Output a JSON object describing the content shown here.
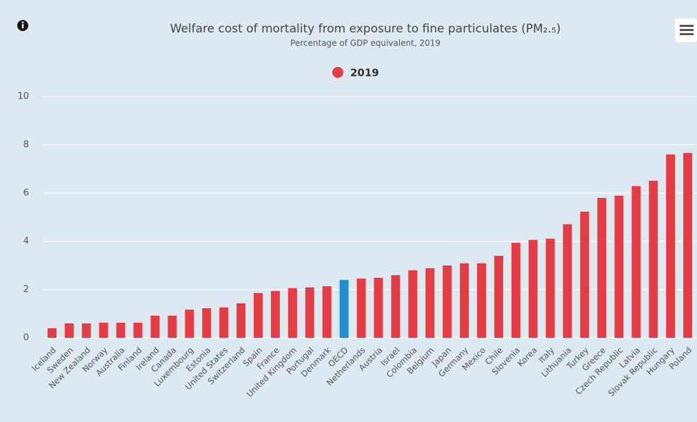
{
  "chart_data": {
    "type": "bar",
    "title": "Welfare cost of mortality from exposure to fine particulates (PM₂.₅)",
    "subtitle": "Percentage of GDP equivalent, 2019",
    "categories": [
      "Iceland",
      "Sweden",
      "New Zealand",
      "Norway",
      "Australia",
      "Finland",
      "Ireland",
      "Canada",
      "Luxembourg",
      "Estonia",
      "United States",
      "Switzerland",
      "Spain",
      "France",
      "United Kingdom",
      "Portugal",
      "Denmark",
      "OECD",
      "Netherlands",
      "Austria",
      "Israel",
      "Colombia",
      "Belgium",
      "Japan",
      "Germany",
      "Mexico",
      "Chile",
      "Slovenia",
      "Korea",
      "Italy",
      "Lithuania",
      "Turkey",
      "Greece",
      "Czech Republic",
      "Latvia",
      "Slovak Republic",
      "Hungary",
      "Poland"
    ],
    "series": [
      {
        "name": "2019",
        "color": "#e63c44",
        "values": [
          0.4,
          0.6,
          0.6,
          0.63,
          0.63,
          0.63,
          0.92,
          0.92,
          1.17,
          1.23,
          1.26,
          1.43,
          1.86,
          1.94,
          2.06,
          2.09,
          2.14,
          2.4,
          2.46,
          2.49,
          2.6,
          2.8,
          2.89,
          3.0,
          3.09,
          3.09,
          3.4,
          3.94,
          4.06,
          4.11,
          4.71,
          5.23,
          5.8,
          5.89,
          6.29,
          6.51,
          7.6,
          7.66
        ],
        "colors": [
          "#e63c44",
          "#e63c44",
          "#e63c44",
          "#e63c44",
          "#e63c44",
          "#e63c44",
          "#e63c44",
          "#e63c44",
          "#e63c44",
          "#e63c44",
          "#e63c44",
          "#e63c44",
          "#e63c44",
          "#e63c44",
          "#e63c44",
          "#e63c44",
          "#e63c44",
          "#1f8fd1",
          "#e63c44",
          "#e63c44",
          "#e63c44",
          "#e63c44",
          "#e63c44",
          "#e63c44",
          "#e63c44",
          "#e63c44",
          "#e63c44",
          "#e63c44",
          "#e63c44",
          "#e63c44",
          "#e63c44",
          "#e63c44",
          "#e63c44",
          "#e63c44",
          "#e63c44",
          "#e63c44",
          "#e63c44",
          "#e63c44"
        ]
      }
    ],
    "ylim": [
      0,
      10
    ],
    "yticks": [
      0,
      2,
      4,
      6,
      8,
      10
    ],
    "grid": true,
    "legend": "top"
  }
}
